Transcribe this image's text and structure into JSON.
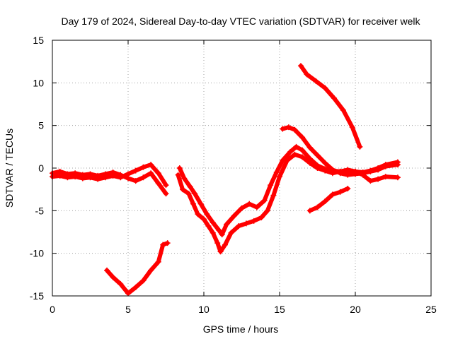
{
  "chart_data": {
    "type": "scatter",
    "title": "Day 179 of 2024, Sidereal Day-to-day VTEC variation (SDTVAR) for receiver welk",
    "xlabel": "GPS time / hours",
    "ylabel": "SDTVAR / TECUs",
    "xlim": [
      0,
      25
    ],
    "ylim": [
      -15,
      15
    ],
    "xticks": [
      0,
      5,
      10,
      15,
      20,
      25
    ],
    "yticks": [
      -15,
      -10,
      -5,
      0,
      5,
      10,
      15
    ],
    "grid": true,
    "marker": "+",
    "color": "#ff0000",
    "series": [
      {
        "name": "track-1",
        "points": [
          [
            0,
            -1
          ],
          [
            0.5,
            -0.9
          ],
          [
            1,
            -1.1
          ],
          [
            1.5,
            -1.0
          ],
          [
            2,
            -1.2
          ],
          [
            2.5,
            -1.1
          ],
          [
            3,
            -1.3
          ],
          [
            3.5,
            -1.1
          ],
          [
            4,
            -0.9
          ],
          [
            4.5,
            -1.1
          ],
          [
            5,
            -0.7
          ],
          [
            5.5,
            -0.3
          ],
          [
            6,
            0.1
          ],
          [
            6.5,
            0.4
          ],
          [
            7,
            -0.6
          ],
          [
            7.5,
            -2.0
          ]
        ]
      },
      {
        "name": "track-2",
        "points": [
          [
            0,
            -0.6
          ],
          [
            0.5,
            -0.4
          ],
          [
            1,
            -0.7
          ],
          [
            1.5,
            -0.6
          ],
          [
            2,
            -0.8
          ],
          [
            2.5,
            -0.7
          ],
          [
            3,
            -0.9
          ],
          [
            3.5,
            -0.7
          ],
          [
            4,
            -0.5
          ],
          [
            4.5,
            -0.8
          ],
          [
            5,
            -1.2
          ],
          [
            5.5,
            -1.5
          ],
          [
            6,
            -1.1
          ],
          [
            6.5,
            -0.6
          ],
          [
            7,
            -1.8
          ],
          [
            7.5,
            -3.0
          ]
        ]
      },
      {
        "name": "track-3",
        "points": [
          [
            8.3,
            -0.8
          ],
          [
            8.6,
            -2.5
          ],
          [
            9,
            -3.0
          ],
          [
            9.3,
            -4.2
          ],
          [
            9.6,
            -5.4
          ],
          [
            10,
            -6.0
          ],
          [
            10.3,
            -6.8
          ],
          [
            10.6,
            -7.6
          ],
          [
            10.9,
            -8.8
          ],
          [
            11.1,
            -9.8
          ],
          [
            11.4,
            -9.0
          ],
          [
            11.8,
            -7.6
          ],
          [
            12.3,
            -6.8
          ],
          [
            12.8,
            -6.5
          ],
          [
            13.3,
            -6.2
          ],
          [
            13.8,
            -5.8
          ],
          [
            14.2,
            -5.0
          ],
          [
            14.6,
            -3.2
          ],
          [
            15,
            -1.0
          ],
          [
            15.5,
            0.9
          ],
          [
            16,
            1.6
          ],
          [
            16.5,
            1.3
          ],
          [
            17,
            0.6
          ],
          [
            17.5,
            0
          ],
          [
            18,
            -0.3
          ],
          [
            18.5,
            -0.6
          ],
          [
            19,
            -0.4
          ],
          [
            19.5,
            -0.6
          ],
          [
            20,
            -0.4
          ],
          [
            20.5,
            -0.8
          ],
          [
            21,
            -1.5
          ],
          [
            21.5,
            -1.3
          ],
          [
            22,
            -1.0
          ],
          [
            22.8,
            -1.1
          ]
        ]
      },
      {
        "name": "track-4",
        "points": [
          [
            8.4,
            0
          ],
          [
            8.7,
            -1.2
          ],
          [
            9.1,
            -2.2
          ],
          [
            9.4,
            -3.0
          ],
          [
            9.8,
            -4.2
          ],
          [
            10.2,
            -5.4
          ],
          [
            10.6,
            -6.4
          ],
          [
            11,
            -7.3
          ],
          [
            11.2,
            -7.8
          ],
          [
            11.5,
            -6.6
          ],
          [
            12,
            -5.6
          ],
          [
            12.5,
            -4.7
          ],
          [
            13,
            -4.2
          ],
          [
            13.5,
            -4.6
          ],
          [
            14,
            -3.8
          ],
          [
            14.4,
            -2.0
          ],
          [
            14.8,
            -0.5
          ],
          [
            15.2,
            0.9
          ],
          [
            15.7,
            1.9
          ],
          [
            16.1,
            2.5
          ],
          [
            16.5,
            2.1
          ],
          [
            17,
            1.1
          ],
          [
            17.5,
            0.3
          ],
          [
            18,
            -0.1
          ],
          [
            18.5,
            -0.3
          ],
          [
            19,
            -0.4
          ],
          [
            19.5,
            -0.2
          ],
          [
            20,
            -0.4
          ],
          [
            20.5,
            -0.5
          ],
          [
            21,
            -0.3
          ],
          [
            21.5,
            0
          ],
          [
            22,
            0.4
          ],
          [
            22.8,
            0.7
          ]
        ]
      },
      {
        "name": "track-5",
        "points": [
          [
            15.2,
            4.6
          ],
          [
            15.6,
            4.8
          ],
          [
            16,
            4.5
          ],
          [
            16.5,
            3.6
          ],
          [
            17,
            2.4
          ],
          [
            17.5,
            1.5
          ],
          [
            18,
            0.6
          ],
          [
            18.5,
            -0.2
          ],
          [
            19,
            -0.6
          ],
          [
            19.5,
            -0.8
          ],
          [
            20,
            -0.7
          ],
          [
            20.5,
            -0.6
          ],
          [
            21,
            -0.4
          ],
          [
            21.5,
            -0.2
          ],
          [
            22,
            0.2
          ],
          [
            22.8,
            0.4
          ]
        ]
      },
      {
        "name": "track-6",
        "points": [
          [
            16.4,
            12
          ],
          [
            16.8,
            11
          ],
          [
            17.4,
            10.2
          ],
          [
            18,
            9.4
          ],
          [
            18.6,
            8.2
          ],
          [
            19.2,
            6.8
          ],
          [
            19.8,
            4.8
          ],
          [
            20.3,
            2.5
          ]
        ]
      },
      {
        "name": "track-7",
        "points": [
          [
            17,
            -5
          ],
          [
            17.5,
            -4.6
          ],
          [
            18,
            -3.9
          ],
          [
            18.5,
            -3.1
          ],
          [
            19,
            -2.8
          ],
          [
            19.5,
            -2.4
          ]
        ]
      },
      {
        "name": "track-8",
        "points": [
          [
            3.6,
            -12.0
          ],
          [
            4,
            -12.8
          ],
          [
            4.5,
            -13.6
          ],
          [
            5,
            -14.7
          ],
          [
            5.5,
            -14.0
          ],
          [
            6,
            -13.2
          ],
          [
            6.5,
            -12.0
          ],
          [
            7,
            -11.0
          ],
          [
            7.3,
            -9.0
          ],
          [
            7.6,
            -8.8
          ]
        ]
      }
    ]
  }
}
